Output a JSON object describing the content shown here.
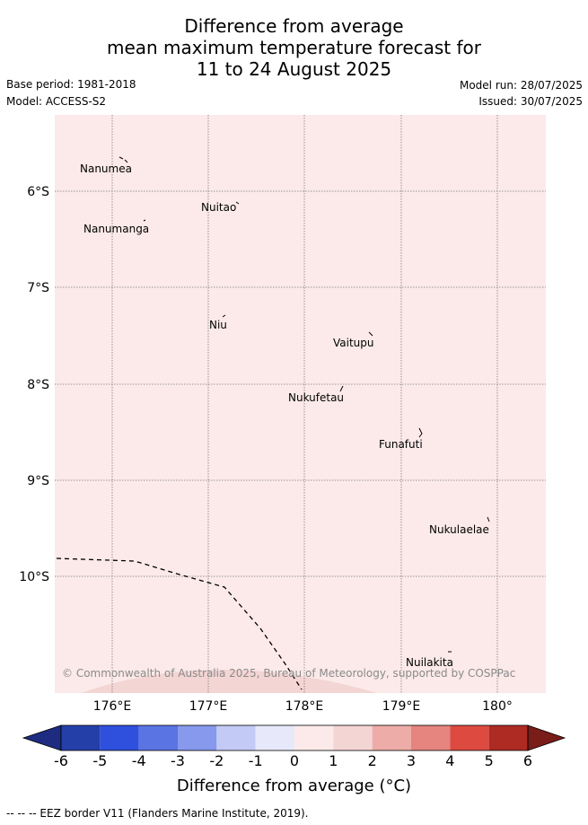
{
  "title": {
    "line1": "Difference from average",
    "line2": "mean maximum temperature forecast for",
    "line3": "11 to 24 August 2025"
  },
  "meta": {
    "base_period": "Base period: 1981-2018",
    "model": "Model: ACCESS-S2",
    "model_run": "Model run: 28/07/2025",
    "issued": "Issued: 30/07/2025"
  },
  "map": {
    "background_anomaly_color": "#fbeae9",
    "lon_ticks": [
      "176°E",
      "177°E",
      "178°E",
      "179°E",
      "180°"
    ],
    "lat_ticks": [
      "6°S",
      "7°S",
      "8°S",
      "9°S",
      "10°S"
    ],
    "places": [
      "Nanumea",
      "Nuitao",
      "Nanumanga",
      "Niu",
      "Vaitupu",
      "Nukufetau",
      "Funafuti",
      "Nukulaelae",
      "Nuilakita"
    ],
    "copyright": "© Commonwealth of Australia 2025, Bureau of Meteorology, supported by COSPPac"
  },
  "colorbar": {
    "ticks": [
      "-6",
      "-5",
      "-4",
      "-3",
      "-2",
      "-1",
      "0",
      "1",
      "2",
      "3",
      "4",
      "5",
      "6"
    ],
    "colors": [
      "#253fa8",
      "#2f50dd",
      "#5a74e3",
      "#8799ec",
      "#c3caf5",
      "#e7e9fb",
      "#fbeae9",
      "#f3d5d3",
      "#edaca8",
      "#e6847f",
      "#dc4a40",
      "#ae2b24"
    ],
    "under_color": "#1d2b80",
    "over_color": "#7a1c18",
    "label": "Difference from average (°C)"
  },
  "footer": "-- -- -- EEZ border V11 (Flanders Marine Institute, 2019)."
}
